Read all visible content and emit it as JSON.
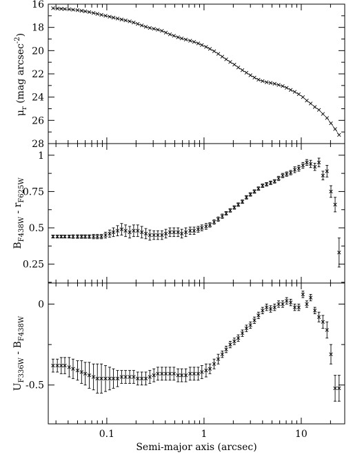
{
  "chart_data": [
    {
      "type": "scatter",
      "panel": "surface-brightness",
      "ylabel": "μ_r (mag arcsec^-2)",
      "ylabel_parts": {
        "symbol": "μ",
        "sub": "r",
        "unit_open": "(mag arcsec",
        "sup": "-2",
        "unit_close": ")"
      },
      "ylim": [
        16,
        28
      ],
      "y_inverted": true,
      "yticks": [
        16,
        18,
        20,
        22,
        24,
        26,
        28
      ],
      "yticklabels": [
        "16",
        "18",
        "20",
        "22",
        "24",
        "26",
        "28"
      ],
      "x_scale": "log",
      "xlim": [
        0.025,
        28
      ],
      "x": [
        0.028,
        0.031,
        0.034,
        0.037,
        0.041,
        0.045,
        0.05,
        0.055,
        0.06,
        0.066,
        0.073,
        0.08,
        0.088,
        0.097,
        0.107,
        0.117,
        0.129,
        0.142,
        0.156,
        0.172,
        0.189,
        0.208,
        0.229,
        0.252,
        0.277,
        0.305,
        0.335,
        0.369,
        0.405,
        0.446,
        0.49,
        0.54,
        0.59,
        0.65,
        0.72,
        0.79,
        0.87,
        0.95,
        1.05,
        1.15,
        1.27,
        1.4,
        1.54,
        1.69,
        1.86,
        2.05,
        2.25,
        2.48,
        2.73,
        3.0,
        3.3,
        3.63,
        4.0,
        4.4,
        4.84,
        5.32,
        5.85,
        6.44,
        7.08,
        7.79,
        8.57,
        9.43,
        10.4,
        11.4,
        12.5,
        13.8,
        15.2,
        16.7,
        18.4,
        20.2,
        22.3,
        24.5
      ],
      "y": [
        16.35,
        16.38,
        16.4,
        16.42,
        16.44,
        16.48,
        16.52,
        16.57,
        16.62,
        16.68,
        16.76,
        16.84,
        16.92,
        17.0,
        17.08,
        17.16,
        17.24,
        17.32,
        17.4,
        17.48,
        17.58,
        17.7,
        17.83,
        17.95,
        18.05,
        18.12,
        18.2,
        18.3,
        18.45,
        18.6,
        18.72,
        18.85,
        18.95,
        19.05,
        19.15,
        19.25,
        19.38,
        19.52,
        19.68,
        19.85,
        20.05,
        20.28,
        20.52,
        20.75,
        20.98,
        21.2,
        21.45,
        21.68,
        21.9,
        22.12,
        22.32,
        22.5,
        22.62,
        22.72,
        22.78,
        22.85,
        22.95,
        23.05,
        23.2,
        23.38,
        23.55,
        23.75,
        24.0,
        24.3,
        24.55,
        24.85,
        25.1,
        25.45,
        25.8,
        26.25,
        26.75,
        27.25
      ]
    },
    {
      "type": "scatter",
      "panel": "B-r-color",
      "ylabel": "B_F438W - r_F625W",
      "ylabel_parts": {
        "a": "B",
        "a_sub": "F438W",
        "sep": " - ",
        "b": "r",
        "b_sub": "F625W"
      },
      "ylim": [
        0.12,
        1.08
      ],
      "yticks": [
        0.25,
        0.5,
        0.75,
        1.0
      ],
      "yticklabels": [
        "0.25",
        "0.5",
        "0.75",
        "1"
      ],
      "x_scale": "log",
      "xlim": [
        0.025,
        28
      ],
      "x": [
        0.028,
        0.031,
        0.034,
        0.037,
        0.041,
        0.045,
        0.05,
        0.055,
        0.06,
        0.066,
        0.073,
        0.08,
        0.088,
        0.097,
        0.107,
        0.117,
        0.129,
        0.142,
        0.156,
        0.172,
        0.189,
        0.208,
        0.229,
        0.252,
        0.277,
        0.305,
        0.335,
        0.369,
        0.405,
        0.446,
        0.49,
        0.54,
        0.59,
        0.65,
        0.72,
        0.79,
        0.87,
        0.95,
        1.05,
        1.15,
        1.27,
        1.4,
        1.54,
        1.69,
        1.86,
        2.05,
        2.25,
        2.48,
        2.73,
        3.0,
        3.3,
        3.63,
        4.0,
        4.4,
        4.84,
        5.32,
        5.85,
        6.44,
        7.08,
        7.79,
        8.57,
        9.43,
        10.4,
        11.4,
        12.5,
        13.8,
        15.2,
        16.7,
        18.4,
        20.2,
        22.3,
        24.5
      ],
      "y": [
        0.44,
        0.44,
        0.44,
        0.44,
        0.44,
        0.44,
        0.44,
        0.44,
        0.44,
        0.44,
        0.44,
        0.44,
        0.44,
        0.45,
        0.46,
        0.47,
        0.48,
        0.49,
        0.48,
        0.47,
        0.48,
        0.48,
        0.47,
        0.46,
        0.45,
        0.45,
        0.45,
        0.45,
        0.46,
        0.47,
        0.47,
        0.47,
        0.46,
        0.47,
        0.48,
        0.48,
        0.49,
        0.5,
        0.51,
        0.52,
        0.54,
        0.56,
        0.58,
        0.6,
        0.62,
        0.64,
        0.66,
        0.68,
        0.71,
        0.73,
        0.75,
        0.77,
        0.79,
        0.8,
        0.81,
        0.82,
        0.84,
        0.86,
        0.87,
        0.88,
        0.9,
        0.91,
        0.93,
        0.95,
        0.94,
        0.92,
        0.95,
        0.86,
        0.89,
        0.75,
        0.66,
        0.33
      ],
      "err": [
        0.01,
        0.01,
        0.01,
        0.01,
        0.01,
        0.012,
        0.012,
        0.012,
        0.012,
        0.012,
        0.015,
        0.015,
        0.015,
        0.02,
        0.025,
        0.03,
        0.035,
        0.04,
        0.04,
        0.04,
        0.04,
        0.04,
        0.04,
        0.035,
        0.035,
        0.03,
        0.03,
        0.03,
        0.03,
        0.03,
        0.03,
        0.03,
        0.03,
        0.03,
        0.025,
        0.025,
        0.02,
        0.02,
        0.02,
        0.015,
        0.015,
        0.015,
        0.015,
        0.012,
        0.012,
        0.012,
        0.012,
        0.012,
        0.012,
        0.012,
        0.012,
        0.012,
        0.012,
        0.012,
        0.012,
        0.012,
        0.015,
        0.015,
        0.015,
        0.015,
        0.02,
        0.02,
        0.02,
        0.02,
        0.025,
        0.025,
        0.03,
        0.03,
        0.04,
        0.04,
        0.05,
        0.1
      ]
    },
    {
      "type": "scatter",
      "panel": "U-B-color",
      "ylabel": "U_F336W - B_F438W",
      "ylabel_parts": {
        "a": "U",
        "a_sub": "F336W",
        "sep": " - ",
        "b": "B",
        "b_sub": "F438W"
      },
      "ylim": [
        -0.74,
        0.13
      ],
      "yticks": [
        -0.5,
        0.0
      ],
      "yticklabels": [
        "-0.5",
        "0"
      ],
      "x_scale": "log",
      "xlim": [
        0.025,
        28
      ],
      "xlabel": "Semi-major axis (arcsec)",
      "xticks": [
        0.1,
        1,
        10
      ],
      "xticklabels": [
        "0.1",
        "1",
        "10"
      ],
      "x": [
        0.028,
        0.031,
        0.034,
        0.037,
        0.041,
        0.045,
        0.05,
        0.055,
        0.06,
        0.066,
        0.073,
        0.08,
        0.088,
        0.097,
        0.107,
        0.117,
        0.129,
        0.142,
        0.156,
        0.172,
        0.189,
        0.208,
        0.229,
        0.252,
        0.277,
        0.305,
        0.335,
        0.369,
        0.405,
        0.446,
        0.49,
        0.54,
        0.59,
        0.65,
        0.72,
        0.79,
        0.87,
        0.95,
        1.05,
        1.15,
        1.27,
        1.4,
        1.54,
        1.69,
        1.86,
        2.05,
        2.25,
        2.48,
        2.73,
        3.0,
        3.3,
        3.63,
        4.0,
        4.4,
        4.84,
        5.32,
        5.85,
        6.44,
        7.08,
        7.79,
        8.57,
        9.43,
        10.4,
        11.4,
        12.5,
        13.8,
        15.2,
        16.7,
        18.4,
        20.2,
        22.3,
        24.5
      ],
      "y": [
        -0.38,
        -0.38,
        -0.38,
        -0.38,
        -0.39,
        -0.4,
        -0.41,
        -0.42,
        -0.43,
        -0.44,
        -0.45,
        -0.46,
        -0.46,
        -0.46,
        -0.46,
        -0.46,
        -0.46,
        -0.45,
        -0.45,
        -0.45,
        -0.45,
        -0.46,
        -0.46,
        -0.46,
        -0.45,
        -0.44,
        -0.43,
        -0.43,
        -0.43,
        -0.43,
        -0.43,
        -0.44,
        -0.44,
        -0.44,
        -0.43,
        -0.43,
        -0.43,
        -0.42,
        -0.41,
        -0.4,
        -0.37,
        -0.34,
        -0.31,
        -0.28,
        -0.25,
        -0.23,
        -0.21,
        -0.18,
        -0.15,
        -0.13,
        -0.1,
        -0.07,
        -0.04,
        -0.02,
        -0.03,
        -0.02,
        0.0,
        0.0,
        0.02,
        0.01,
        -0.02,
        -0.02,
        0.06,
        0.0,
        0.04,
        -0.04,
        -0.08,
        -0.11,
        -0.16,
        -0.31,
        -0.52,
        -0.52
      ],
      "err": [
        0.04,
        0.04,
        0.05,
        0.05,
        0.06,
        0.06,
        0.06,
        0.07,
        0.07,
        0.08,
        0.08,
        0.09,
        0.09,
        0.08,
        0.07,
        0.06,
        0.05,
        0.04,
        0.04,
        0.04,
        0.04,
        0.04,
        0.04,
        0.04,
        0.04,
        0.04,
        0.04,
        0.04,
        0.04,
        0.04,
        0.04,
        0.04,
        0.04,
        0.04,
        0.04,
        0.04,
        0.04,
        0.04,
        0.04,
        0.03,
        0.03,
        0.03,
        0.02,
        0.02,
        0.02,
        0.02,
        0.02,
        0.02,
        0.02,
        0.02,
        0.02,
        0.02,
        0.02,
        0.02,
        0.02,
        0.02,
        0.02,
        0.02,
        0.02,
        0.02,
        0.02,
        0.02,
        0.02,
        0.02,
        0.02,
        0.02,
        0.03,
        0.04,
        0.05,
        0.06,
        0.08,
        0.08
      ]
    }
  ]
}
